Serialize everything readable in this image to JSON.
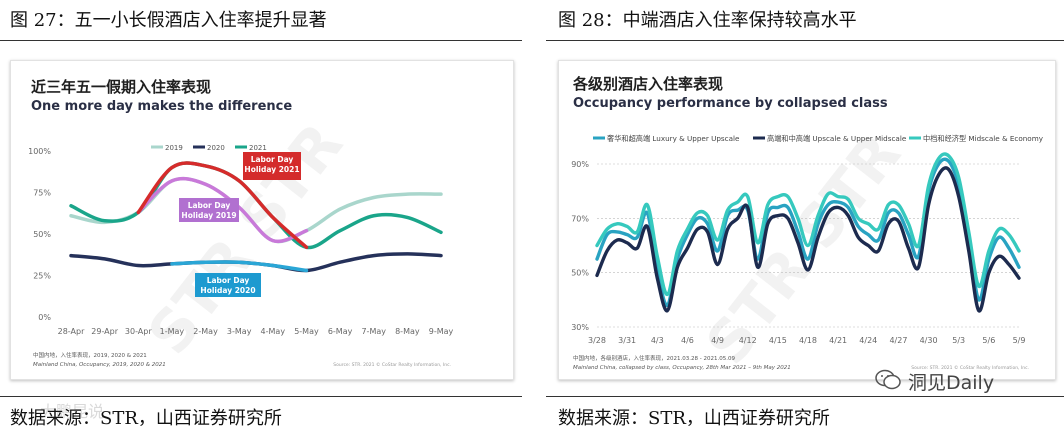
{
  "left": {
    "figure_title": "图 27：五一小长假酒店入住率提升显著",
    "source": "数据来源：STR，山西证券研究所",
    "chart_data": {
      "type": "line",
      "title": "近三年五一假期入住率表现",
      "subtitle": "One more day makes the difference",
      "categories": [
        "28-Apr",
        "29-Apr",
        "30-Apr",
        "1-May",
        "2-May",
        "3-May",
        "4-May",
        "5-May",
        "6-May",
        "7-May",
        "8-May",
        "9-May"
      ],
      "ylim": [
        0,
        100
      ],
      "yticks": [
        "0%",
        "25%",
        "50%",
        "75%",
        "100%"
      ],
      "legend_position": "top-center",
      "series": [
        {
          "name": "2019",
          "color": "#a9d6cc",
          "values": [
            61,
            57,
            63,
            82,
            80,
            66,
            46,
            52,
            65,
            72,
            74,
            74
          ]
        },
        {
          "name": "2020",
          "color": "#25315a",
          "values": [
            37,
            35,
            31,
            32,
            33,
            33,
            31,
            28,
            33,
            37,
            38,
            37
          ]
        },
        {
          "name": "2021",
          "color": "#1aa58a",
          "values": [
            67,
            58,
            63,
            90,
            91,
            82,
            60,
            42,
            52,
            61,
            60,
            51
          ]
        }
      ],
      "annotations": [
        {
          "text": "Labor Day\nHoliday 2021",
          "color": "#d42b2b"
        },
        {
          "text": "Labor Day\nHoliday 2019",
          "color": "#b170d0"
        },
        {
          "text": "Labor Day\nHoliday 2020",
          "color": "#1d9ad0"
        }
      ],
      "footnote_cn": "中国内地，入住率表现，2019, 2020 & 2021",
      "footnote_en": "Mainland China, Occupancy, 2019, 2020 & 2021",
      "credit": "Source: STR. 2021 © CoStar Realty Information, Inc."
    }
  },
  "right": {
    "figure_title": "图 28：中端酒店入住率保持较高水平",
    "source": "数据来源：STR，山西证券研究所",
    "chart_data": {
      "type": "line",
      "title": "各级别酒店入住率表现",
      "subtitle": "Occupancy performance by collapsed class",
      "x": [
        "3/28",
        "3/29",
        "3/30",
        "3/31",
        "4/1",
        "4/2",
        "4/3",
        "4/4",
        "4/5",
        "4/6",
        "4/7",
        "4/8",
        "4/9",
        "4/10",
        "4/11",
        "4/12",
        "4/13",
        "4/14",
        "4/15",
        "4/16",
        "4/17",
        "4/18",
        "4/19",
        "4/20",
        "4/21",
        "4/22",
        "4/23",
        "4/24",
        "4/25",
        "4/26",
        "4/27",
        "4/28",
        "4/29",
        "4/30",
        "5/1",
        "5/2",
        "5/3",
        "5/4",
        "5/5",
        "5/6",
        "5/7",
        "5/8",
        "5/9"
      ],
      "xticks": [
        "3/28",
        "3/31",
        "4/3",
        "4/6",
        "4/9",
        "4/12",
        "4/15",
        "4/18",
        "4/21",
        "4/24",
        "4/27",
        "4/30",
        "5/3",
        "5/6",
        "5/9"
      ],
      "ylim": [
        30,
        95
      ],
      "yticks": [
        "30%",
        "50%",
        "70%",
        "90%"
      ],
      "legend_position": "top",
      "series": [
        {
          "name": "奢华和超高端 Luxury & Upper Upscale",
          "color": "#29a3c2",
          "values": [
            55,
            64,
            65,
            64,
            63,
            72,
            51,
            38,
            55,
            64,
            70,
            68,
            58,
            71,
            73,
            73,
            55,
            72,
            74,
            74,
            65,
            55,
            68,
            75,
            76,
            74,
            67,
            64,
            62,
            72,
            72,
            64,
            56,
            80,
            90,
            91,
            82,
            62,
            40,
            55,
            63,
            59,
            52
          ]
        },
        {
          "name": "高端和中高端 Upscale & Upper Midscale",
          "color": "#1d2b4f",
          "values": [
            49,
            58,
            62,
            61,
            59,
            67,
            48,
            36,
            52,
            59,
            66,
            65,
            53,
            66,
            70,
            74,
            52,
            68,
            71,
            70,
            61,
            51,
            63,
            72,
            74,
            71,
            63,
            60,
            58,
            68,
            69,
            59,
            52,
            75,
            86,
            88,
            78,
            58,
            36,
            50,
            56,
            53,
            48
          ]
        },
        {
          "name": "中档和经济型 Midscale & Economy",
          "color": "#36c9be",
          "values": [
            60,
            66,
            68,
            67,
            65,
            75,
            56,
            42,
            58,
            66,
            72,
            71,
            62,
            73,
            76,
            78,
            61,
            75,
            78,
            78,
            70,
            60,
            71,
            79,
            78,
            77,
            70,
            68,
            66,
            75,
            75,
            68,
            60,
            82,
            92,
            93,
            85,
            65,
            45,
            58,
            66,
            64,
            58
          ]
        }
      ],
      "footnote_cn": "中国内地，各级别酒店，入住率表现，2021.03.28 - 2021.05.09",
      "footnote_en": "Mainland China, collapsed by class, Occupancy, 28th Mar 2021 – 9th May 2021",
      "credit": "Source: STR. 2021 © CoStar Realty Information, Inc."
    }
  },
  "watermark_left": "大鹏昆说",
  "watermark_right": "洞见Daily",
  "chart_watermark": "STR STR"
}
